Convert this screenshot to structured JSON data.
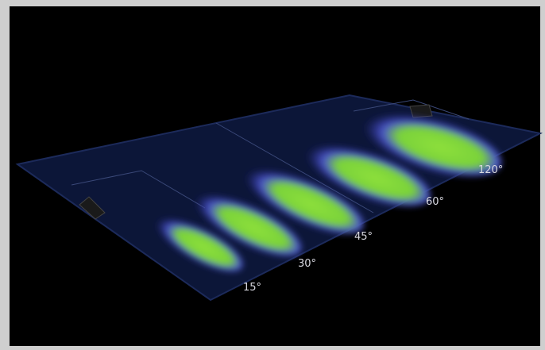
{
  "beam_labels": [
    "15°",
    "30°",
    "45°",
    "60°",
    "120°"
  ]
}
